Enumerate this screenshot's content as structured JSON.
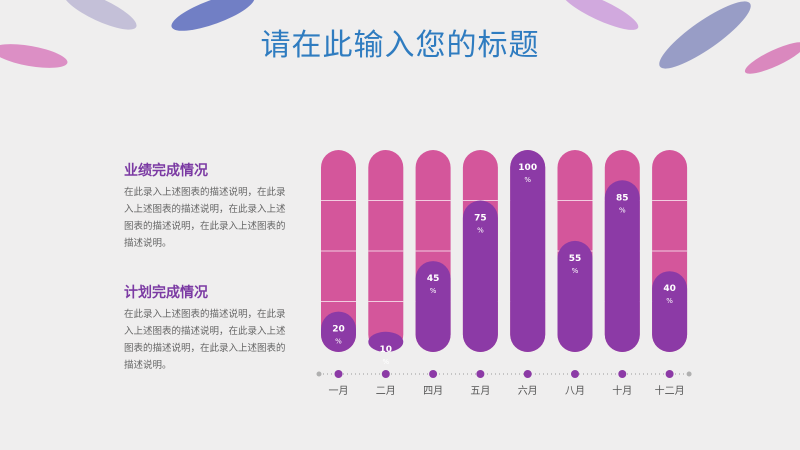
{
  "title": "请在此输入您的标题",
  "sections": [
    {
      "heading": "业绩完成情况",
      "body": "在此录入上述图表的描述说明，在此录入上述图表的描述说明，在此录入上述图表的描述说明，在此录入上述图表的描述说明。"
    },
    {
      "heading": "计划完成情况",
      "body": "在此录入上述图表的描述说明，在此录入上述图表的描述说明，在此录入上述图表的描述说明，在此录入上述图表的描述说明。"
    }
  ],
  "chart_data": {
    "type": "bar",
    "categories": [
      "一月",
      "二月",
      "四月",
      "五月",
      "六月",
      "八月",
      "十月",
      "十二月"
    ],
    "values": [
      20,
      10,
      45,
      75,
      100,
      55,
      85,
      40
    ],
    "unit": "%",
    "ylim": [
      0,
      100
    ],
    "grid": true,
    "legend": "none",
    "colors": {
      "track": "#d4569b",
      "fill": "#8c3aa6",
      "dot": "#8c3aa6",
      "axis_end": "#b0b0b0"
    }
  }
}
